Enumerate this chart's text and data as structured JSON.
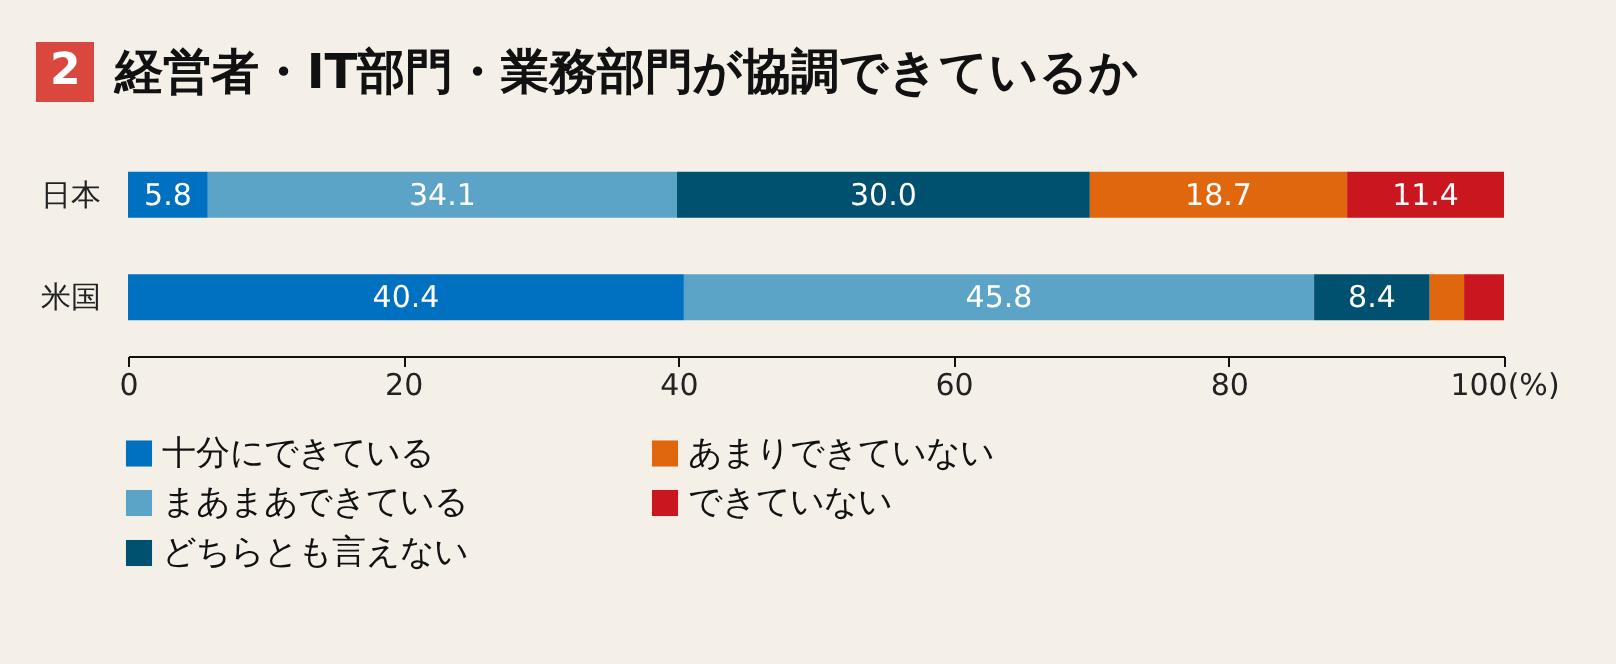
{
  "chart_data": {
    "type": "bar",
    "orientation": "horizontal",
    "stacked": true,
    "title": "経営者・IT部門・業務部門が協調できているか",
    "annotations": [
      "2"
    ],
    "categories": [
      "日本",
      "米国"
    ],
    "series": [
      {
        "name": "十分にできている",
        "color": "#0070c0",
        "values": [
          5.8,
          40.4
        ],
        "value_labels": [
          "5.8",
          "40.4"
        ]
      },
      {
        "name": "まあまあできている",
        "color": "#5ba4c7",
        "values": [
          34.1,
          45.8
        ],
        "value_labels": [
          "34.1",
          "45.8"
        ]
      },
      {
        "name": "どちらとも言えない",
        "color": "#00506f",
        "values": [
          30.0,
          8.4
        ],
        "value_labels": [
          "30.0",
          "8.4"
        ]
      },
      {
        "name": "あまりできていない",
        "color": "#e0670e",
        "values": [
          18.7,
          2.5
        ],
        "value_labels": [
          "18.7",
          null
        ]
      },
      {
        "name": "できていない",
        "color": "#c9161f",
        "values": [
          11.4,
          2.9
        ],
        "value_labels": [
          "11.4",
          null
        ]
      }
    ],
    "xlim": [
      0,
      100
    ],
    "xticks": [
      0,
      20,
      40,
      60,
      {
        "value": 80,
        "label": "80"
      },
      {
        "value": 100,
        "label": "100(%)"
      }
    ],
    "grid": false,
    "legend": "bottom"
  }
}
